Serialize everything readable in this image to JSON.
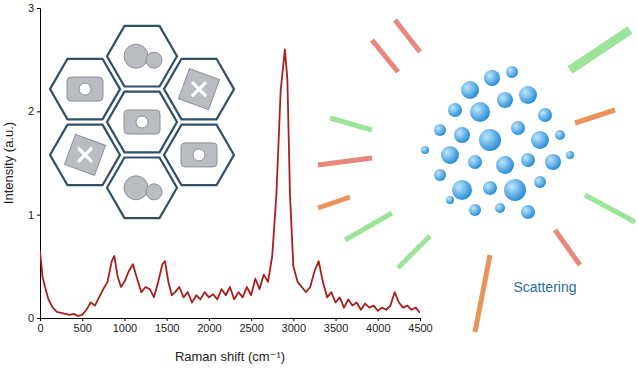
{
  "chart_data": {
    "type": "line",
    "x_label": "Raman shift (cm⁻¹)",
    "y_label": "Intensity (a.u.)",
    "annotations": [
      "Scattering"
    ],
    "color": "#a8201a",
    "xlim": [
      0,
      4500
    ],
    "ylim": [
      0,
      3
    ],
    "xticks": [
      0,
      500,
      1000,
      1500,
      2000,
      2500,
      3000,
      3500,
      4000,
      4500
    ],
    "yticks": [
      0,
      1,
      2,
      3
    ],
    "x": [
      0,
      30,
      60,
      100,
      150,
      200,
      250,
      300,
      350,
      400,
      450,
      500,
      550,
      600,
      650,
      700,
      750,
      800,
      850,
      880,
      920,
      960,
      1000,
      1050,
      1100,
      1150,
      1200,
      1250,
      1300,
      1350,
      1400,
      1450,
      1480,
      1520,
      1560,
      1600,
      1650,
      1700,
      1750,
      1800,
      1850,
      1900,
      1950,
      2000,
      2050,
      2100,
      2150,
      2200,
      2250,
      2300,
      2350,
      2400,
      2450,
      2500,
      2550,
      2600,
      2650,
      2700,
      2750,
      2800,
      2850,
      2900,
      2930,
      2960,
      3000,
      3050,
      3100,
      3150,
      3200,
      3250,
      3300,
      3350,
      3400,
      3450,
      3500,
      3550,
      3600,
      3650,
      3700,
      3750,
      3800,
      3850,
      3900,
      3950,
      4000,
      4050,
      4100,
      4150,
      4200,
      4250,
      4300,
      4350,
      4400,
      4450,
      4500
    ],
    "values": [
      0.65,
      0.4,
      0.3,
      0.18,
      0.1,
      0.06,
      0.05,
      0.04,
      0.03,
      0.04,
      0.02,
      0.03,
      0.08,
      0.15,
      0.12,
      0.2,
      0.28,
      0.35,
      0.55,
      0.6,
      0.4,
      0.3,
      0.35,
      0.45,
      0.52,
      0.38,
      0.25,
      0.3,
      0.28,
      0.2,
      0.35,
      0.52,
      0.55,
      0.35,
      0.22,
      0.25,
      0.3,
      0.2,
      0.25,
      0.15,
      0.22,
      0.18,
      0.25,
      0.2,
      0.23,
      0.18,
      0.28,
      0.22,
      0.3,
      0.18,
      0.25,
      0.2,
      0.3,
      0.22,
      0.38,
      0.28,
      0.42,
      0.35,
      0.6,
      1.2,
      2.2,
      2.6,
      2.3,
      1.2,
      0.5,
      0.35,
      0.3,
      0.25,
      0.3,
      0.45,
      0.55,
      0.35,
      0.2,
      0.25,
      0.15,
      0.2,
      0.1,
      0.18,
      0.12,
      0.15,
      0.08,
      0.14,
      0.1,
      0.12,
      0.07,
      0.1,
      0.08,
      0.12,
      0.25,
      0.15,
      0.1,
      0.12,
      0.08,
      0.1,
      0.05
    ]
  }
}
